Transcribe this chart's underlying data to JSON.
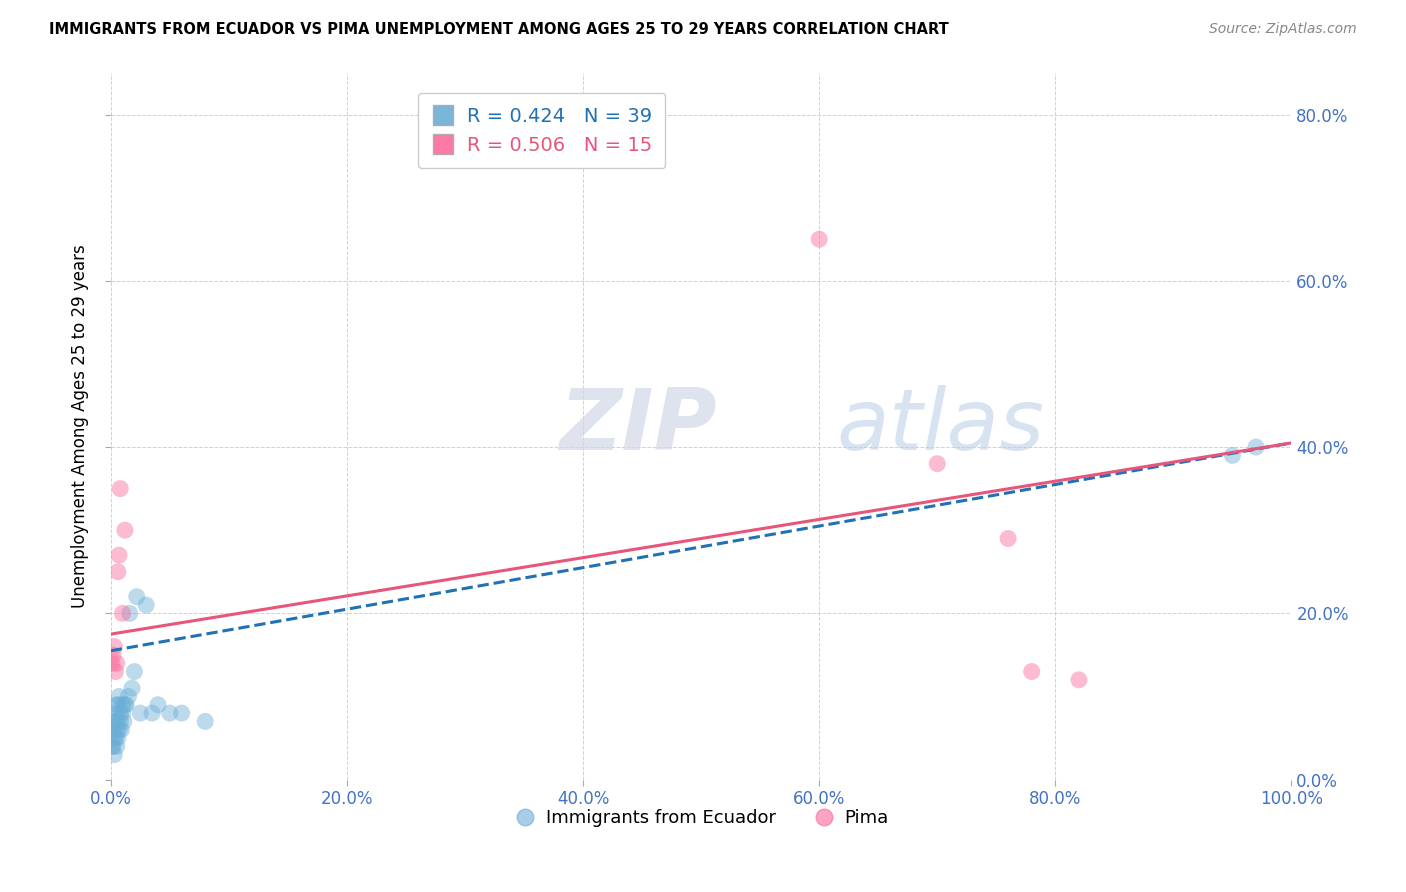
{
  "title": "IMMIGRANTS FROM ECUADOR VS PIMA UNEMPLOYMENT AMONG AGES 25 TO 29 YEARS CORRELATION CHART",
  "source": "Source: ZipAtlas.com",
  "ylabel_label": "Unemployment Among Ages 25 to 29 years",
  "legend_label1": "Immigrants from Ecuador",
  "legend_label2": "Pima",
  "R1": 0.424,
  "N1": 39,
  "R2": 0.506,
  "N2": 15,
  "color1": "#6baed6",
  "color2": "#fb6a9a",
  "trendline1_color": "#2171b5",
  "trendline2_color": "#e8557a",
  "background_color": "#ffffff",
  "grid_color": "#cccccc",
  "axis_label_color": "#4472c4",
  "xlim": [
    0.0,
    1.0
  ],
  "ylim": [
    0.0,
    0.85
  ],
  "xticks": [
    0.0,
    0.2,
    0.4,
    0.6,
    0.8,
    1.0
  ],
  "yticks": [
    0.0,
    0.2,
    0.4,
    0.6,
    0.8
  ],
  "xtick_labels": [
    "0.0%",
    "20.0%",
    "40.0%",
    "60.0%",
    "80.0%",
    "100.0%"
  ],
  "ytick_labels": [
    "0.0%",
    "20.0%",
    "40.0%",
    "60.0%",
    "80.0%"
  ],
  "blue_x": [
    0.001,
    0.001,
    0.002,
    0.002,
    0.003,
    0.003,
    0.003,
    0.004,
    0.004,
    0.005,
    0.005,
    0.005,
    0.006,
    0.006,
    0.006,
    0.007,
    0.007,
    0.008,
    0.008,
    0.009,
    0.01,
    0.01,
    0.011,
    0.012,
    0.013,
    0.015,
    0.016,
    0.018,
    0.02,
    0.022,
    0.025,
    0.03,
    0.035,
    0.04,
    0.05,
    0.06,
    0.08,
    0.95,
    0.97
  ],
  "blue_y": [
    0.04,
    0.06,
    0.04,
    0.07,
    0.03,
    0.05,
    0.07,
    0.05,
    0.08,
    0.04,
    0.06,
    0.09,
    0.05,
    0.07,
    0.09,
    0.06,
    0.1,
    0.07,
    0.08,
    0.06,
    0.08,
    0.09,
    0.07,
    0.09,
    0.09,
    0.1,
    0.2,
    0.11,
    0.13,
    0.22,
    0.08,
    0.21,
    0.08,
    0.09,
    0.08,
    0.08,
    0.07,
    0.39,
    0.4
  ],
  "pink_x": [
    0.001,
    0.002,
    0.003,
    0.004,
    0.005,
    0.006,
    0.007,
    0.008,
    0.01,
    0.012,
    0.6,
    0.7,
    0.76,
    0.78,
    0.82
  ],
  "pink_y": [
    0.14,
    0.15,
    0.16,
    0.13,
    0.14,
    0.25,
    0.27,
    0.35,
    0.2,
    0.3,
    0.65,
    0.38,
    0.29,
    0.13,
    0.12
  ],
  "blue_line_x": [
    0.0,
    1.0
  ],
  "blue_line_y": [
    0.155,
    0.405
  ],
  "pink_line_x": [
    0.0,
    1.0
  ],
  "pink_line_y": [
    0.175,
    0.405
  ]
}
